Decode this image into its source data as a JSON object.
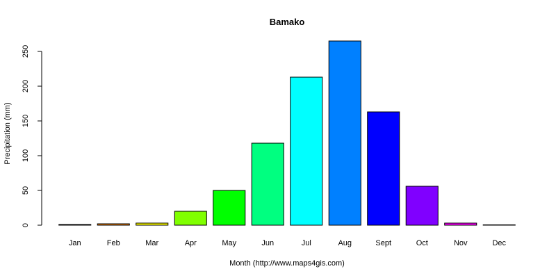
{
  "chart_data": {
    "type": "bar",
    "title": "Bamako",
    "xlabel": "Month (http://www.maps4gis.com)",
    "ylabel": "Precipitation (mm)",
    "categories": [
      "Jan",
      "Feb",
      "Mar",
      "Apr",
      "May",
      "Jun",
      "Jul",
      "Aug",
      "Sept",
      "Oct",
      "Nov",
      "Dec"
    ],
    "values": [
      1,
      2,
      3,
      20,
      50,
      118,
      213,
      265,
      163,
      56,
      3,
      0
    ],
    "colors": [
      "#000000",
      "#FF8000",
      "#FFFF00",
      "#80FF00",
      "#00FF00",
      "#00FF80",
      "#00FFFF",
      "#0080FF",
      "#0000FF",
      "#8000FF",
      "#FF00FF",
      "#FF0080"
    ],
    "ylim": [
      0,
      265
    ],
    "yticks": [
      0,
      50,
      100,
      150,
      200,
      250
    ],
    "grid": false,
    "legend": "none"
  }
}
